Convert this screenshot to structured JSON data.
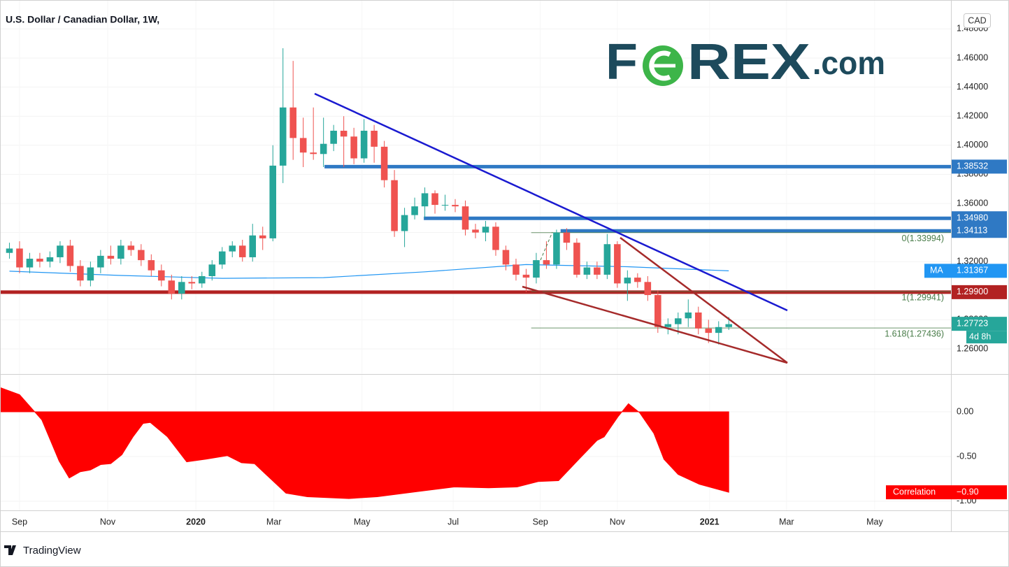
{
  "chart_data": [
    {
      "type": "candlestick",
      "title": "U.S. Dollar / Canadian Dollar, 1W,",
      "currency": "CAD",
      "up_color": "#26a69a",
      "down_color": "#ef5350",
      "x": [
        -1,
        0,
        1,
        2,
        3,
        4,
        5,
        6,
        7,
        8,
        9,
        10,
        11,
        12,
        13,
        14,
        15,
        16,
        17,
        18,
        19,
        20,
        21,
        22,
        23,
        24,
        25,
        26,
        27,
        28,
        29,
        30,
        31,
        32,
        33,
        34,
        35,
        36,
        37,
        38,
        39,
        40,
        41,
        42,
        43,
        44,
        45,
        46,
        47,
        48,
        49,
        50,
        51,
        52,
        53,
        54,
        55,
        56,
        57,
        58,
        59,
        60,
        61,
        62,
        63,
        64,
        65,
        66,
        67,
        68,
        69,
        70
      ],
      "open": [
        1.326,
        1.329,
        1.316,
        1.322,
        1.32,
        1.323,
        1.331,
        1.317,
        1.307,
        1.316,
        1.324,
        1.322,
        1.331,
        1.328,
        1.321,
        1.314,
        1.307,
        1.298,
        1.306,
        1.305,
        1.31,
        1.318,
        1.327,
        1.331,
        1.323,
        1.338,
        1.336,
        1.386,
        1.426,
        1.405,
        1.395,
        1.394,
        1.401,
        1.41,
        1.406,
        1.391,
        1.41,
        1.399,
        1.376,
        1.341,
        1.352,
        1.358,
        1.367,
        1.359,
        1.359,
        1.358,
        1.342,
        1.34,
        1.344,
        1.328,
        1.318,
        1.311,
        1.309,
        1.321,
        1.318,
        1.34,
        1.333,
        1.311,
        1.316,
        1.311,
        1.332,
        1.305,
        1.309,
        1.306,
        1.297,
        1.275,
        1.277,
        1.281,
        1.285,
        1.274,
        1.271,
        1.275
      ],
      "high": [
        1.333,
        1.334,
        1.326,
        1.326,
        1.327,
        1.334,
        1.335,
        1.321,
        1.32,
        1.328,
        1.331,
        1.335,
        1.334,
        1.332,
        1.325,
        1.318,
        1.311,
        1.31,
        1.31,
        1.313,
        1.321,
        1.33,
        1.334,
        1.335,
        1.346,
        1.344,
        1.4,
        1.4667,
        1.458,
        1.419,
        1.426,
        1.419,
        1.414,
        1.42,
        1.412,
        1.418,
        1.414,
        1.403,
        1.383,
        1.357,
        1.364,
        1.371,
        1.369,
        1.366,
        1.363,
        1.362,
        1.346,
        1.348,
        1.347,
        1.331,
        1.322,
        1.315,
        1.326,
        1.334,
        1.342,
        1.343,
        1.336,
        1.32,
        1.32,
        1.339,
        1.334,
        1.314,
        1.312,
        1.31,
        1.3,
        1.281,
        1.285,
        1.294,
        1.289,
        1.28,
        1.279,
        1.282
      ],
      "low": [
        1.322,
        1.312,
        1.312,
        1.316,
        1.316,
        1.319,
        1.313,
        1.303,
        1.303,
        1.312,
        1.318,
        1.318,
        1.324,
        1.317,
        1.31,
        1.303,
        1.294,
        1.294,
        1.301,
        1.302,
        1.307,
        1.315,
        1.323,
        1.32,
        1.32,
        1.328,
        1.334,
        1.374,
        1.39,
        1.385,
        1.39,
        1.385,
        1.396,
        1.385,
        1.387,
        1.388,
        1.388,
        1.371,
        1.337,
        1.33,
        1.349,
        1.35,
        1.353,
        1.355,
        1.354,
        1.338,
        1.336,
        1.334,
        1.324,
        1.314,
        1.307,
        1.299,
        1.305,
        1.315,
        1.315,
        1.328,
        1.309,
        1.308,
        1.308,
        1.308,
        1.302,
        1.293,
        1.302,
        1.293,
        1.271,
        1.27,
        1.27,
        1.275,
        1.27,
        1.264,
        1.263,
        1.273
      ],
      "close": [
        1.329,
        1.316,
        1.322,
        1.32,
        1.323,
        1.331,
        1.317,
        1.307,
        1.316,
        1.324,
        1.322,
        1.331,
        1.328,
        1.321,
        1.314,
        1.307,
        1.298,
        1.306,
        1.305,
        1.31,
        1.318,
        1.327,
        1.331,
        1.323,
        1.338,
        1.336,
        1.386,
        1.426,
        1.405,
        1.395,
        1.394,
        1.401,
        1.41,
        1.406,
        1.391,
        1.41,
        1.399,
        1.376,
        1.341,
        1.352,
        1.358,
        1.367,
        1.359,
        1.359,
        1.358,
        1.342,
        1.34,
        1.344,
        1.328,
        1.318,
        1.311,
        1.309,
        1.321,
        1.318,
        1.34,
        1.333,
        1.311,
        1.316,
        1.311,
        1.332,
        1.305,
        1.309,
        1.306,
        1.297,
        1.275,
        1.277,
        1.281,
        1.285,
        1.274,
        1.271,
        1.275,
        1.277
      ],
      "xlim": [
        -1.93,
        91.93
      ],
      "xticks": [
        {
          "value": 0,
          "label": "Sep"
        },
        {
          "value": 8.7,
          "label": "Nov"
        },
        {
          "value": 17.4,
          "label": "2020"
        },
        {
          "value": 25.1,
          "label": "Mar"
        },
        {
          "value": 33.8,
          "label": "May"
        },
        {
          "value": 42.8,
          "label": "Jul"
        },
        {
          "value": 51.4,
          "label": "Sep"
        },
        {
          "value": 59.0,
          "label": "Nov"
        },
        {
          "value": 68.1,
          "label": "2021"
        },
        {
          "value": 75.7,
          "label": "Mar"
        },
        {
          "value": 84.4,
          "label": "May"
        }
      ],
      "ylim": [
        1.24269,
        1.4999
      ],
      "yticks": [
        {
          "value": 1.26,
          "label": "1.26000"
        },
        {
          "value": 1.28,
          "label": "1.28000"
        },
        {
          "value": 1.3,
          "label": "1.30000"
        },
        {
          "value": 1.32,
          "label": "1.32000"
        },
        {
          "value": 1.34,
          "label": "1.34000"
        },
        {
          "value": 1.36,
          "label": "1.36000"
        },
        {
          "value": 1.38,
          "label": "1.38000"
        },
        {
          "value": 1.4,
          "label": "1.40000"
        },
        {
          "value": 1.42,
          "label": "1.42000"
        },
        {
          "value": 1.44,
          "label": "1.44000"
        },
        {
          "value": 1.46,
          "label": "1.46000"
        },
        {
          "value": 1.48,
          "label": "1.48000"
        }
      ],
      "ma": {
        "name": "MA",
        "color": "#2196f3",
        "x": [
          -1,
          10,
          20,
          30,
          40,
          50,
          60,
          70
        ],
        "values": [
          1.3134,
          1.3105,
          1.3085,
          1.309,
          1.313,
          1.318,
          1.3165,
          1.31367
        ]
      },
      "levels": [
        {
          "value": 1.38532,
          "x_start": 30.1,
          "color": "#2f79c4"
        },
        {
          "value": 1.3498,
          "label": "1.34980",
          "x_start": 39.9,
          "color": "#2f79c4"
        },
        {
          "value": 1.34113,
          "x_start": 53.4,
          "color": "#2f79c4"
        },
        {
          "value": 1.299,
          "label": "1.29900",
          "x_start": -1.93,
          "color": "#b22222"
        }
      ],
      "fib": {
        "x_start": 50.5,
        "color": "#4a7d4a",
        "levels": [
          {
            "value": 1.33994,
            "label": "0(1.33994)"
          },
          {
            "value": 1.29941,
            "label": "1(1.29941)"
          },
          {
            "value": 1.27436,
            "label": "1.618(1.27436)"
          }
        ]
      },
      "last_price": {
        "value": 1.27723,
        "countdown": "4d 8h"
      }
    },
    {
      "type": "area",
      "series": [
        {
          "name": "Correlation",
          "color": "#ff0000",
          "x": [
            -1.9,
            0,
            2.2,
            3.9,
            4.9,
            6,
            7,
            8,
            9,
            10.1,
            11.2,
            12.2,
            12.9,
            14.6,
            16.5,
            18.4,
            20.5,
            21.9,
            23.2,
            24.6,
            26.3,
            28.4,
            32.5,
            35.3,
            39.4,
            42.9,
            46.3,
            49.1,
            51.2,
            53.2,
            55.3,
            57,
            57.7,
            59.1,
            60.1,
            61.2,
            62.6,
            63.6,
            65,
            67.1,
            70
          ],
          "values": [
            0.27,
            0.19,
            -0.09,
            -0.55,
            -0.74,
            -0.67,
            -0.65,
            -0.59,
            -0.58,
            -0.48,
            -0.28,
            -0.13,
            -0.12,
            -0.28,
            -0.56,
            -0.53,
            -0.49,
            -0.57,
            -0.58,
            -0.73,
            -0.91,
            -0.95,
            -0.97,
            -0.95,
            -0.89,
            -0.84,
            -0.85,
            -0.84,
            -0.78,
            -0.77,
            -0.52,
            -0.32,
            -0.28,
            -0.05,
            0.09,
            -0.01,
            -0.24,
            -0.53,
            -0.7,
            -0.81,
            -0.9
          ],
          "last_label": "−0.90"
        }
      ],
      "xlim": [
        -1.93,
        91.93
      ],
      "ylim": [
        -1.102,
        0.406
      ],
      "yticks": [
        {
          "value": 0,
          "label": "0.00"
        },
        {
          "value": -0.5,
          "label": "-0.50"
        },
        {
          "value": -1,
          "label": "-1.00"
        }
      ]
    }
  ],
  "branding": {
    "logo": [
      "F",
      "REX",
      ".com"
    ],
    "footer": "TradingView"
  }
}
